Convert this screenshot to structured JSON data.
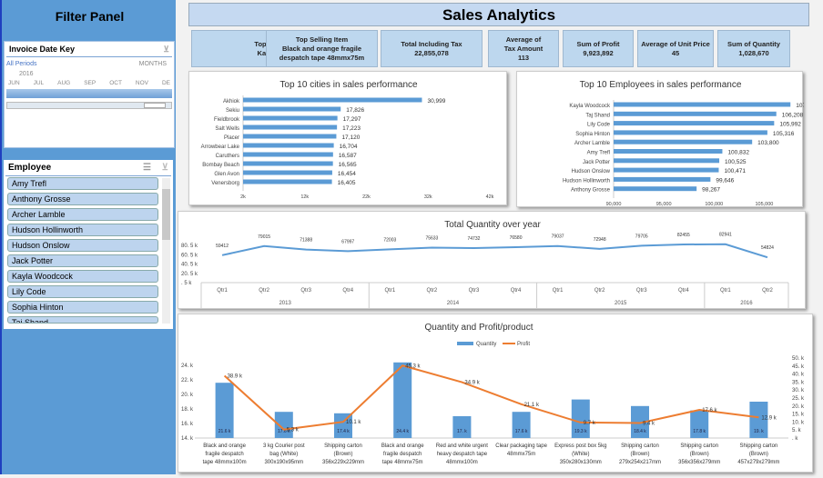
{
  "filter_panel": {
    "title": "Filter Panel",
    "date_slicer": {
      "title": "Invoice Date Key",
      "all_periods": "All Periods",
      "level": "MONTHS",
      "year": "2016",
      "months": [
        "JUN",
        "JUL",
        "AUG",
        "SEP",
        "OCT",
        "NOV",
        "DE"
      ]
    },
    "employee_slicer": {
      "title": "Employee",
      "items": [
        "Amy Trefl",
        "Anthony Grosse",
        "Archer Lamble",
        "Hudson Hollinworth",
        "Hudson Onslow",
        "Jack Potter",
        "Kayla Woodcock",
        "Lily Code",
        "Sophia Hinton",
        "Taj Shand"
      ]
    }
  },
  "header": {
    "title": "Sales Analytics"
  },
  "kpis": [
    {
      "label": "Top Sales persons",
      "value": "Kayla Woodcock"
    },
    {
      "label": "Top Selling Item",
      "value": "Black and orange fragile despatch tape 48mmx75m"
    },
    {
      "label": "Total Including Tax",
      "value": "22,855,078"
    },
    {
      "label": "Average of Tax Amount",
      "value": "113"
    },
    {
      "label": "Sum of Profit",
      "value": "9,923,892"
    },
    {
      "label": "Average of Unit Price",
      "value": "45"
    },
    {
      "label": "Sum of Quantity",
      "value": "1,028,670"
    }
  ],
  "colors": {
    "blue": "#5b9bd5",
    "orange": "#ed7d31",
    "panel": "#5b9bd5"
  },
  "chart_data": [
    {
      "type": "bar",
      "orientation": "horizontal",
      "title": "Top 10 cities in sales performance",
      "categories": [
        "Akhiok",
        "Sekiu",
        "Fieldbrook",
        "Salt Wells",
        "Placer",
        "Arrowbear Lake",
        "Caruthers",
        "Bombay Beach",
        "Glen Avon",
        "Venersborg"
      ],
      "values": [
        30999,
        17826,
        17297,
        17223,
        17120,
        16704,
        16587,
        16565,
        16454,
        16405
      ],
      "labels": [
        "30,999",
        "17,826",
        "17,297",
        "17,223",
        "17,120",
        "16,704",
        "16,587",
        "16,565",
        "16,454",
        "16,405"
      ],
      "xlim": [
        2000,
        42000
      ],
      "xticks": [
        "2k",
        "12k",
        "22k",
        "32k",
        "42k"
      ]
    },
    {
      "type": "bar",
      "orientation": "horizontal",
      "title": "Top 10 Employees in sales performance",
      "categories": [
        "Kayla Woodcock",
        "Taj Shand",
        "Lily Code",
        "Sophia Hinton",
        "Archer Lamble",
        "Amy Trefl",
        "Jack Potter",
        "Hudson Onslow",
        "Hudson Hollinworth",
        "Anthony Grosse"
      ],
      "values": [
        107613,
        106208,
        105992,
        105316,
        103800,
        100832,
        100525,
        100471,
        99646,
        98267
      ],
      "labels": [
        "107,613",
        "106,208",
        "105,992",
        "105,316",
        "103,800",
        "100,832",
        "100,525",
        "100,471",
        "99,646",
        "98,267"
      ],
      "xlim": [
        90000,
        108500
      ],
      "xticks": [
        "90,000",
        "95,000",
        "100,000",
        "105,000"
      ]
    },
    {
      "type": "line",
      "title": "Total Quantity over year",
      "categories": [
        "Qtr1",
        "Qtr2",
        "Qtr3",
        "Qtr4",
        "Qtr1",
        "Qtr2",
        "Qtr3",
        "Qtr4",
        "Qtr1",
        "Qtr2",
        "Qtr3",
        "Qtr4",
        "Qtr1",
        "Qtr2"
      ],
      "groups": [
        {
          "label": "2013",
          "span": 4
        },
        {
          "label": "2014",
          "span": 4
        },
        {
          "label": "2015",
          "span": 4
        },
        {
          "label": "2016",
          "span": 2
        }
      ],
      "values": [
        59412,
        79015,
        71388,
        67997,
        72003,
        75633,
        74732,
        76580,
        79037,
        72948,
        79705,
        82455,
        82941,
        54824
      ],
      "ylim": [
        500,
        80500
      ],
      "yticks": [
        "80. 5 k",
        "60. 5 k",
        "40. 5 k",
        "20. 5 k",
        ". 5 k"
      ]
    },
    {
      "type": "bar+line",
      "title": "Quantity and Profit/product",
      "categories": [
        "Black and orange fragile despatch tape 48mmx100m",
        "3 kg Courier post bag (White) 300x190x95mm",
        "Shipping carton (Brown) 356x229x229mm",
        "Black and orange fragile despatch tape 48mmx75m",
        "Red and white urgent heavy despatch tape 48mmx100m",
        "Clear packaging tape 48mmx75m",
        "Express post box 5kg (White) 350x280x130mm",
        "Shipping carton (Brown) 279x254x217mm",
        "Shipping carton (Brown) 356x356x279mm",
        "Shipping carton (Brown) 457x279x279mm"
      ],
      "series": [
        {
          "name": "Quantity",
          "axis": "left",
          "values": [
            21600,
            17600,
            17400,
            24400,
            17000,
            17600,
            19300,
            18400,
            17800,
            19000
          ],
          "labels": [
            "21.6 k",
            "17.6 k",
            "17.4 k",
            "24.4 k",
            "17. k",
            "17.6 k",
            "19.3 k",
            "18.4 k",
            "17.8 k",
            "19. k"
          ]
        },
        {
          "name": "Profit",
          "axis": "right",
          "values": [
            38900,
            5300,
            10100,
            45300,
            34900,
            21100,
            9700,
            9400,
            17600,
            12900
          ],
          "labels": [
            "38.9 k",
            "5.3 k",
            "10.1 k",
            "45.3 k",
            "34.9 k",
            "21.1 k",
            "9.7 k",
            "9.4 k",
            "17.6 k",
            "12.9 k"
          ]
        }
      ],
      "ylim_left": [
        14000,
        25000
      ],
      "yticks_left": [
        "24. k",
        "22. k",
        "20. k",
        "18. k",
        "16. k",
        "14. k"
      ],
      "ylim_right": [
        0,
        50000
      ],
      "yticks_right": [
        "50. k",
        "45. k",
        "40. k",
        "35. k",
        "30. k",
        "25. k",
        "20. k",
        "15. k",
        "10. k",
        "5. k",
        ". k"
      ],
      "legend": "top"
    }
  ]
}
